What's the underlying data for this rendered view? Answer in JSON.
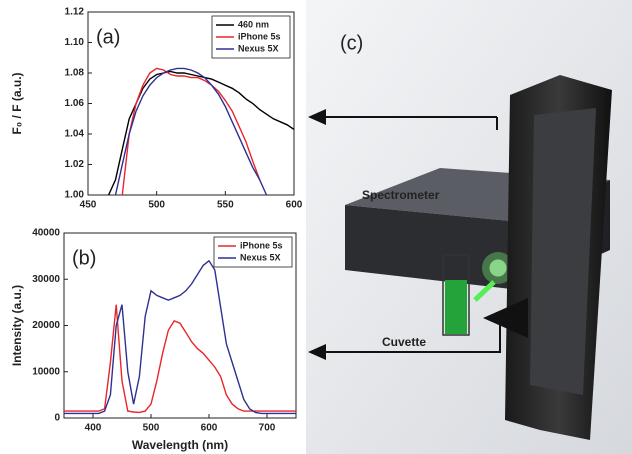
{
  "chart_data": [
    {
      "type": "line",
      "panel_label": "(a)",
      "y_label": "F₀ / F (a.u.)",
      "x": [
        465,
        470,
        475,
        480,
        485,
        490,
        495,
        500,
        505,
        510,
        515,
        520,
        525,
        530,
        535,
        540,
        545,
        550,
        555,
        560,
        565,
        570,
        575,
        580,
        585,
        590,
        595,
        600
      ],
      "series": [
        {
          "name": "460 nm",
          "color": "#000000",
          "values": [
            1.0,
            1.01,
            1.03,
            1.05,
            1.06,
            1.07,
            1.076,
            1.079,
            1.08,
            1.081,
            1.08,
            1.08,
            1.079,
            1.078,
            1.077,
            1.076,
            1.074,
            1.072,
            1.07,
            1.067,
            1.063,
            1.06,
            1.056,
            1.053,
            1.05,
            1.048,
            1.046,
            1.043
          ]
        },
        {
          "name": "iPhone 5s",
          "color": "#e8262b",
          "values": [
            null,
            null,
            1.0,
            1.04,
            1.06,
            1.072,
            1.08,
            1.083,
            1.082,
            1.079,
            1.078,
            1.078,
            1.077,
            1.077,
            1.075,
            1.072,
            1.068,
            1.062,
            1.055,
            1.045,
            1.035,
            1.022,
            1.01,
            null,
            null,
            null,
            null,
            null
          ]
        },
        {
          "name": "Nexus 5X",
          "color": "#2e3192",
          "values": [
            null,
            1.0,
            1.02,
            1.04,
            1.055,
            1.065,
            1.072,
            1.077,
            1.08,
            1.082,
            1.083,
            1.083,
            1.082,
            1.08,
            1.077,
            1.072,
            1.066,
            1.058,
            1.048,
            1.038,
            1.028,
            1.018,
            1.01,
            1.0,
            null,
            null,
            null,
            null
          ]
        }
      ],
      "xlim": [
        450,
        600
      ],
      "xticks": [
        450,
        500,
        550,
        600
      ],
      "ylim": [
        1.0,
        1.12
      ],
      "yticks": [
        {
          "value": 1.0,
          "label": "1.00"
        },
        1.02,
        1.04,
        1.06,
        1.08,
        {
          "value": 1.1,
          "label": "1.10"
        },
        1.12
      ],
      "legend": "upper right"
    },
    {
      "type": "line",
      "panel_label": "(b)",
      "x_label": "Wavelength (nm)",
      "y_label": "Intensity (a.u.)",
      "x": [
        350,
        360,
        370,
        380,
        390,
        400,
        410,
        420,
        430,
        440,
        450,
        460,
        470,
        480,
        490,
        500,
        510,
        520,
        530,
        540,
        550,
        560,
        570,
        580,
        590,
        600,
        610,
        620,
        630,
        640,
        650,
        660,
        670,
        680,
        690,
        700,
        710,
        720,
        730,
        740,
        750
      ],
      "series": [
        {
          "name": "iPhone 5s",
          "color": "#e8262b",
          "values": [
            1500,
            1500,
            1500,
            1500,
            1500,
            1500,
            1500,
            2000,
            12000,
            24500,
            8000,
            1500,
            1300,
            1200,
            1500,
            3000,
            8000,
            14000,
            19000,
            21000,
            20500,
            18500,
            16500,
            15000,
            14000,
            12500,
            11000,
            9000,
            5000,
            3000,
            2000,
            1500,
            1500,
            1500,
            1500,
            1500,
            1500,
            1500,
            1500,
            1500,
            1500
          ]
        },
        {
          "name": "Nexus 5X",
          "color": "#2e3192",
          "values": [
            1000,
            1000,
            1000,
            1000,
            1000,
            1000,
            1000,
            1500,
            5000,
            20000,
            24500,
            10000,
            3000,
            9000,
            22000,
            27500,
            26500,
            26000,
            25500,
            26000,
            26500,
            27500,
            29000,
            31000,
            33000,
            34000,
            32000,
            24000,
            16000,
            12000,
            8000,
            4000,
            2000,
            1200,
            1000,
            1000,
            1000,
            1000,
            1000,
            1000,
            1000
          ]
        }
      ],
      "xlim": [
        350,
        750
      ],
      "xticks": [
        400,
        500,
        600,
        700
      ],
      "ylim": [
        0,
        40000
      ],
      "yticks": [
        0,
        10000,
        20000,
        30000,
        40000
      ],
      "legend": "upper right"
    }
  ],
  "illustration": {
    "panel_label": "(c)",
    "labels": [
      "Spectrometer",
      "Cuvette"
    ]
  }
}
